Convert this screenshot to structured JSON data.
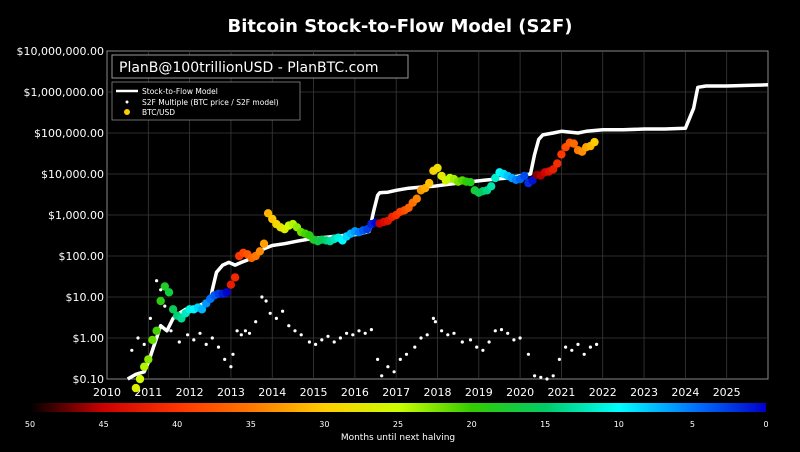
{
  "chart_data": {
    "type": "scatter",
    "title": "Bitcoin Stock-to-Flow Model (S2F)",
    "annotation": "PlanB@100trillionUSD - PlanBTC.com",
    "y_scale": "log",
    "ylim": [
      0.1,
      10000000
    ],
    "xlim": [
      2010,
      2026
    ],
    "y_ticks": [
      "$0.10",
      "$1.00",
      "$10.00",
      "$100.00",
      "$1,000.00",
      "$10,000.00",
      "$100,000.00",
      "$1,000,000.00",
      "$10,000,000.00"
    ],
    "x_ticks": [
      "2010",
      "2011",
      "2012",
      "2013",
      "2014",
      "2015",
      "2016",
      "2017",
      "2018",
      "2019",
      "2020",
      "2021",
      "2022",
      "2023",
      "2024",
      "2025"
    ],
    "legend": {
      "position": "top-left",
      "entries": [
        "Stock-to-Flow Model",
        "S2F Multiple (BTC price / S2F model)",
        "BTC/USD"
      ]
    },
    "colorbar": {
      "label": "Months until next halving",
      "tick_labels": [
        "50",
        "45",
        "40",
        "35",
        "30",
        "25",
        "20",
        "15",
        "10",
        "5",
        "0"
      ],
      "range": [
        50,
        0
      ],
      "colors": [
        "#000000",
        "#cc0000",
        "#ff3300",
        "#ff7700",
        "#ffcc00",
        "#ccff00",
        "#33cc00",
        "#00cc66",
        "#00ffff",
        "#0077ff",
        "#0000cc"
      ]
    },
    "series": [
      {
        "name": "Stock-to-Flow Model",
        "color": "#ffffff",
        "x": [
          2010.5,
          2010.7,
          2010.9,
          2011.0,
          2011.1,
          2011.2,
          2011.3,
          2011.45,
          2011.6,
          2011.75,
          2011.9,
          2012.05,
          2012.2,
          2012.35,
          2012.5,
          2012.55,
          2012.65,
          2012.8,
          2012.95,
          2013.1,
          2013.25,
          2013.4,
          2013.6,
          2013.8,
          2014.0,
          2014.3,
          2014.6,
          2014.9,
          2015.2,
          2015.5,
          2015.8,
          2016.1,
          2016.35,
          2016.45,
          2016.55,
          2016.6,
          2016.8,
          2017.0,
          2017.3,
          2017.6,
          2017.9,
          2018.2,
          2018.5,
          2018.8,
          2019.1,
          2019.4,
          2019.7,
          2020.0,
          2020.25,
          2020.35,
          2020.45,
          2020.55,
          2020.8,
          2021.0,
          2021.2,
          2021.4,
          2021.6,
          2021.8,
          2022.0,
          2022.5,
          2023.0,
          2023.5,
          2024.0,
          2024.2,
          2024.3,
          2024.5,
          2025.0,
          2025.5,
          2026.0
        ],
        "y": [
          0.1,
          0.13,
          0.15,
          0.25,
          0.5,
          1,
          2,
          1.5,
          3,
          4,
          5,
          5,
          6,
          7,
          8,
          15,
          40,
          60,
          70,
          60,
          70,
          80,
          110,
          150,
          180,
          200,
          230,
          260,
          280,
          300,
          320,
          340,
          400,
          1200,
          3000,
          3500,
          3600,
          4000,
          4500,
          4800,
          5000,
          5500,
          6000,
          6500,
          7000,
          7500,
          8000,
          9000,
          10000,
          30000,
          70000,
          90000,
          100000,
          110000,
          105000,
          100000,
          110000,
          115000,
          120000,
          120000,
          125000,
          125000,
          130000,
          400000,
          1300000,
          1400000,
          1400000,
          1450000,
          1500000
        ]
      },
      {
        "name": "S2F Multiple (BTC price / S2F model)",
        "color": "#ffffff",
        "x": [
          2010.6,
          2010.75,
          2010.9,
          2011.05,
          2011.2,
          2011.3,
          2011.4,
          2011.55,
          2011.75,
          2011.95,
          2012.1,
          2012.25,
          2012.4,
          2012.55,
          2012.7,
          2012.85,
          2013.0,
          2013.05,
          2013.15,
          2013.25,
          2013.35,
          2013.45,
          2013.6,
          2013.75,
          2013.85,
          2013.95,
          2014.1,
          2014.25,
          2014.4,
          2014.55,
          2014.7,
          2014.9,
          2015.05,
          2015.2,
          2015.35,
          2015.5,
          2015.65,
          2015.8,
          2015.95,
          2016.1,
          2016.25,
          2016.4,
          2016.55,
          2016.65,
          2016.8,
          2016.95,
          2017.1,
          2017.25,
          2017.45,
          2017.6,
          2017.75,
          2017.9,
          2017.95,
          2018.1,
          2018.25,
          2018.4,
          2018.6,
          2018.8,
          2018.95,
          2019.1,
          2019.25,
          2019.4,
          2019.55,
          2019.7,
          2019.85,
          2020.0,
          2020.2,
          2020.35,
          2020.5,
          2020.65,
          2020.8,
          2020.95,
          2021.1,
          2021.25,
          2021.4,
          2021.55,
          2021.7,
          2021.85
        ],
        "y": [
          0.5,
          1,
          0.7,
          3,
          25,
          15,
          6,
          1.5,
          0.8,
          1.2,
          0.9,
          1.3,
          0.7,
          1,
          0.6,
          0.3,
          0.2,
          0.4,
          1.5,
          1.2,
          1.5,
          1.3,
          2.5,
          10,
          8,
          4,
          3,
          4.5,
          2,
          1.5,
          1.2,
          0.8,
          0.7,
          0.9,
          1.1,
          0.8,
          1,
          1.3,
          1.2,
          1.5,
          1.3,
          1.6,
          0.3,
          0.12,
          0.2,
          0.15,
          0.3,
          0.4,
          0.6,
          1,
          1.2,
          3,
          2.5,
          1.5,
          1.2,
          1.3,
          0.8,
          0.9,
          0.6,
          0.5,
          0.8,
          1.5,
          1.6,
          1.3,
          0.9,
          1,
          0.4,
          0.12,
          0.11,
          0.1,
          0.12,
          0.3,
          0.6,
          0.5,
          0.7,
          0.4,
          0.6,
          0.7
        ]
      },
      {
        "name": "BTC/USD",
        "color": "#ffcc00",
        "x": [
          2010.7,
          2010.8,
          2010.9,
          2011.0,
          2011.1,
          2011.2,
          2011.3,
          2011.4,
          2011.5,
          2011.6,
          2011.7,
          2011.8,
          2011.9,
          2012.0,
          2012.1,
          2012.2,
          2012.3,
          2012.4,
          2012.5,
          2012.6,
          2012.7,
          2012.8,
          2012.9,
          2013.0,
          2013.1,
          2013.2,
          2013.3,
          2013.4,
          2013.5,
          2013.6,
          2013.7,
          2013.8,
          2013.9,
          2014.0,
          2014.1,
          2014.2,
          2014.3,
          2014.4,
          2014.5,
          2014.6,
          2014.7,
          2014.8,
          2014.9,
          2015.0,
          2015.1,
          2015.2,
          2015.3,
          2015.4,
          2015.5,
          2015.6,
          2015.7,
          2015.8,
          2015.9,
          2016.0,
          2016.1,
          2016.2,
          2016.3,
          2016.4,
          2016.5,
          2016.6,
          2016.7,
          2016.8,
          2016.9,
          2017.0,
          2017.1,
          2017.2,
          2017.3,
          2017.4,
          2017.5,
          2017.6,
          2017.7,
          2017.8,
          2017.9,
          2018.0,
          2018.1,
          2018.2,
          2018.3,
          2018.4,
          2018.5,
          2018.6,
          2018.7,
          2018.8,
          2018.9,
          2019.0,
          2019.1,
          2019.2,
          2019.3,
          2019.4,
          2019.5,
          2019.6,
          2019.7,
          2019.8,
          2019.9,
          2020.0,
          2020.1,
          2020.2,
          2020.3,
          2020.4,
          2020.5,
          2020.6,
          2020.7,
          2020.8,
          2020.9,
          2021.0,
          2021.1,
          2021.2,
          2021.3,
          2021.4,
          2021.5,
          2021.6,
          2021.7,
          2021.8
        ],
        "y": [
          0.06,
          0.1,
          0.2,
          0.3,
          0.9,
          1.5,
          8,
          18,
          13,
          5,
          3.5,
          3,
          4,
          5,
          5,
          5.5,
          5,
          7,
          9,
          11,
          12,
          12,
          13,
          20,
          30,
          100,
          120,
          110,
          90,
          100,
          130,
          200,
          1100,
          800,
          600,
          500,
          450,
          550,
          600,
          500,
          380,
          350,
          320,
          250,
          230,
          250,
          240,
          230,
          260,
          280,
          240,
          300,
          350,
          400,
          380,
          420,
          450,
          600,
          650,
          620,
          680,
          720,
          900,
          1000,
          1200,
          1300,
          1500,
          2000,
          2500,
          4000,
          4500,
          6000,
          12000,
          14000,
          9000,
          7000,
          8000,
          7500,
          6500,
          7000,
          6500,
          6300,
          4000,
          3500,
          3800,
          4000,
          5000,
          8000,
          11000,
          10000,
          9000,
          8000,
          7200,
          7500,
          9000,
          6000,
          7000,
          9500,
          9200,
          11000,
          11500,
          13000,
          18000,
          30000,
          45000,
          58000,
          55000,
          38000,
          35000,
          45000,
          48000,
          60000
        ]
      }
    ]
  }
}
